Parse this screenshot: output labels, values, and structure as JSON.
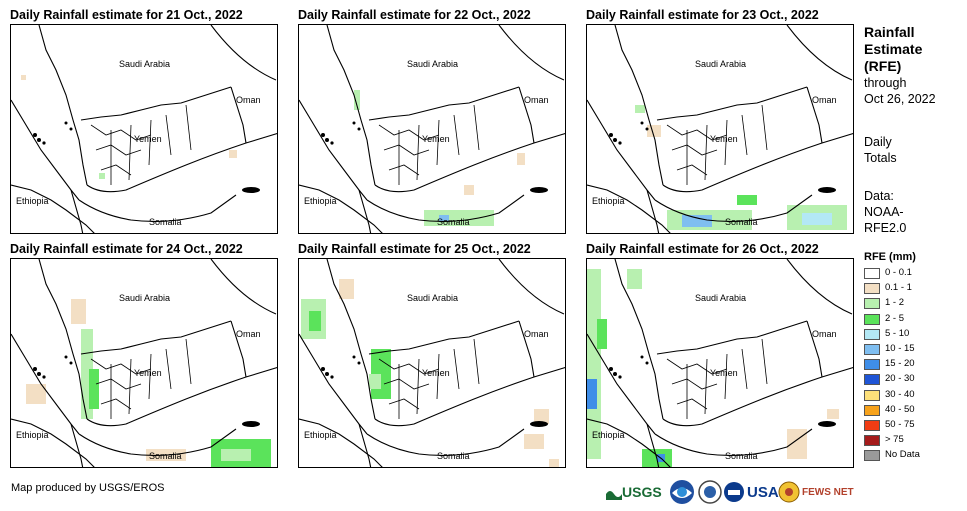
{
  "panels": [
    {
      "title": "Daily Rainfall estimate for 21 Oct., 2022"
    },
    {
      "title": "Daily Rainfall estimate for 22 Oct., 2022"
    },
    {
      "title": "Daily Rainfall estimate for 23 Oct., 2022"
    },
    {
      "title": "Daily Rainfall estimate for 24 Oct., 2022"
    },
    {
      "title": "Daily Rainfall estimate for 25 Oct., 2022"
    },
    {
      "title": "Daily Rainfall estimate for 26 Oct., 2022"
    }
  ],
  "map_labels": {
    "saudi": "Saudi Arabia",
    "oman": "Oman",
    "yemen": "Yemen",
    "ethiopia": "Ethiopia",
    "somalia": "Somalia"
  },
  "sidebar": {
    "title_line1": "Rainfall",
    "title_line2": "Estimate",
    "title_line3": "(RFE)",
    "through": "through",
    "date": "Oct 26, 2022",
    "daily": "Daily",
    "totals": "Totals",
    "data_label": "Data:",
    "data_source1": "NOAA-",
    "data_source2": "RFE2.0"
  },
  "legend": {
    "title": "RFE (mm)",
    "items": [
      {
        "label": "0 - 0.1",
        "color": "#ffffff"
      },
      {
        "label": "0.1 - 1",
        "color": "#f3dfc4"
      },
      {
        "label": "1 - 2",
        "color": "#b8f0b0"
      },
      {
        "label": "2 - 5",
        "color": "#5be35b"
      },
      {
        "label": "5 - 10",
        "color": "#b3e8f5"
      },
      {
        "label": "10 - 15",
        "color": "#7fbef0"
      },
      {
        "label": "15 - 20",
        "color": "#3f8ee8"
      },
      {
        "label": "20 - 30",
        "color": "#1f55d6"
      },
      {
        "label": "30 - 40",
        "color": "#fde07a"
      },
      {
        "label": "40 - 50",
        "color": "#f7a21b"
      },
      {
        "label": "50 - 75",
        "color": "#f03c14"
      },
      {
        "label": "> 75",
        "color": "#a51b1b"
      },
      {
        "label": "No Data",
        "color": "#9a9a9a"
      }
    ]
  },
  "credit": "Map produced by USGS/EROS",
  "logos": {
    "usgs": "USGS",
    "usaid": "USAID",
    "fewsnet": "FEWS NET"
  }
}
